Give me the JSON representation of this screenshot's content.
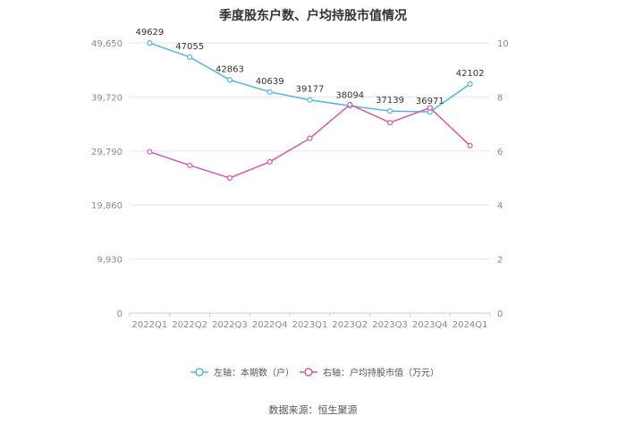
{
  "chart_data": {
    "type": "line",
    "title": "季度股东户数、户均持股市值情况",
    "categories": [
      "2022Q1",
      "2022Q2",
      "2022Q3",
      "2022Q4",
      "2023Q1",
      "2023Q2",
      "2023Q3",
      "2023Q4",
      "2024Q1"
    ],
    "left_axis": {
      "ticks": [
        "0",
        "9,930",
        "19,860",
        "29,790",
        "39,720",
        "49,650"
      ],
      "ylim": [
        0,
        49650
      ]
    },
    "right_axis": {
      "ticks": [
        "0",
        "2",
        "4",
        "6",
        "8",
        "10"
      ],
      "ylim": [
        0,
        10
      ]
    },
    "series": [
      {
        "name": "左轴：本期数（户）",
        "axis": "left",
        "color": "#4db8e8",
        "values": [
          49629,
          47055,
          42863,
          40639,
          39177,
          38094,
          37139,
          36971,
          42102
        ],
        "labels": [
          "49629",
          "47055",
          "42863",
          "40639",
          "39177",
          "38094",
          "37139",
          "36971",
          "42102"
        ]
      },
      {
        "name": "右轴：户均持股市值（万元）",
        "axis": "right",
        "color": "#d957a8",
        "values": [
          5.97,
          5.47,
          5.0,
          5.6,
          6.47,
          7.72,
          7.05,
          7.6,
          6.2
        ]
      }
    ],
    "grid": true,
    "legend": "bottom",
    "source": "数据来源：恒生聚源"
  }
}
